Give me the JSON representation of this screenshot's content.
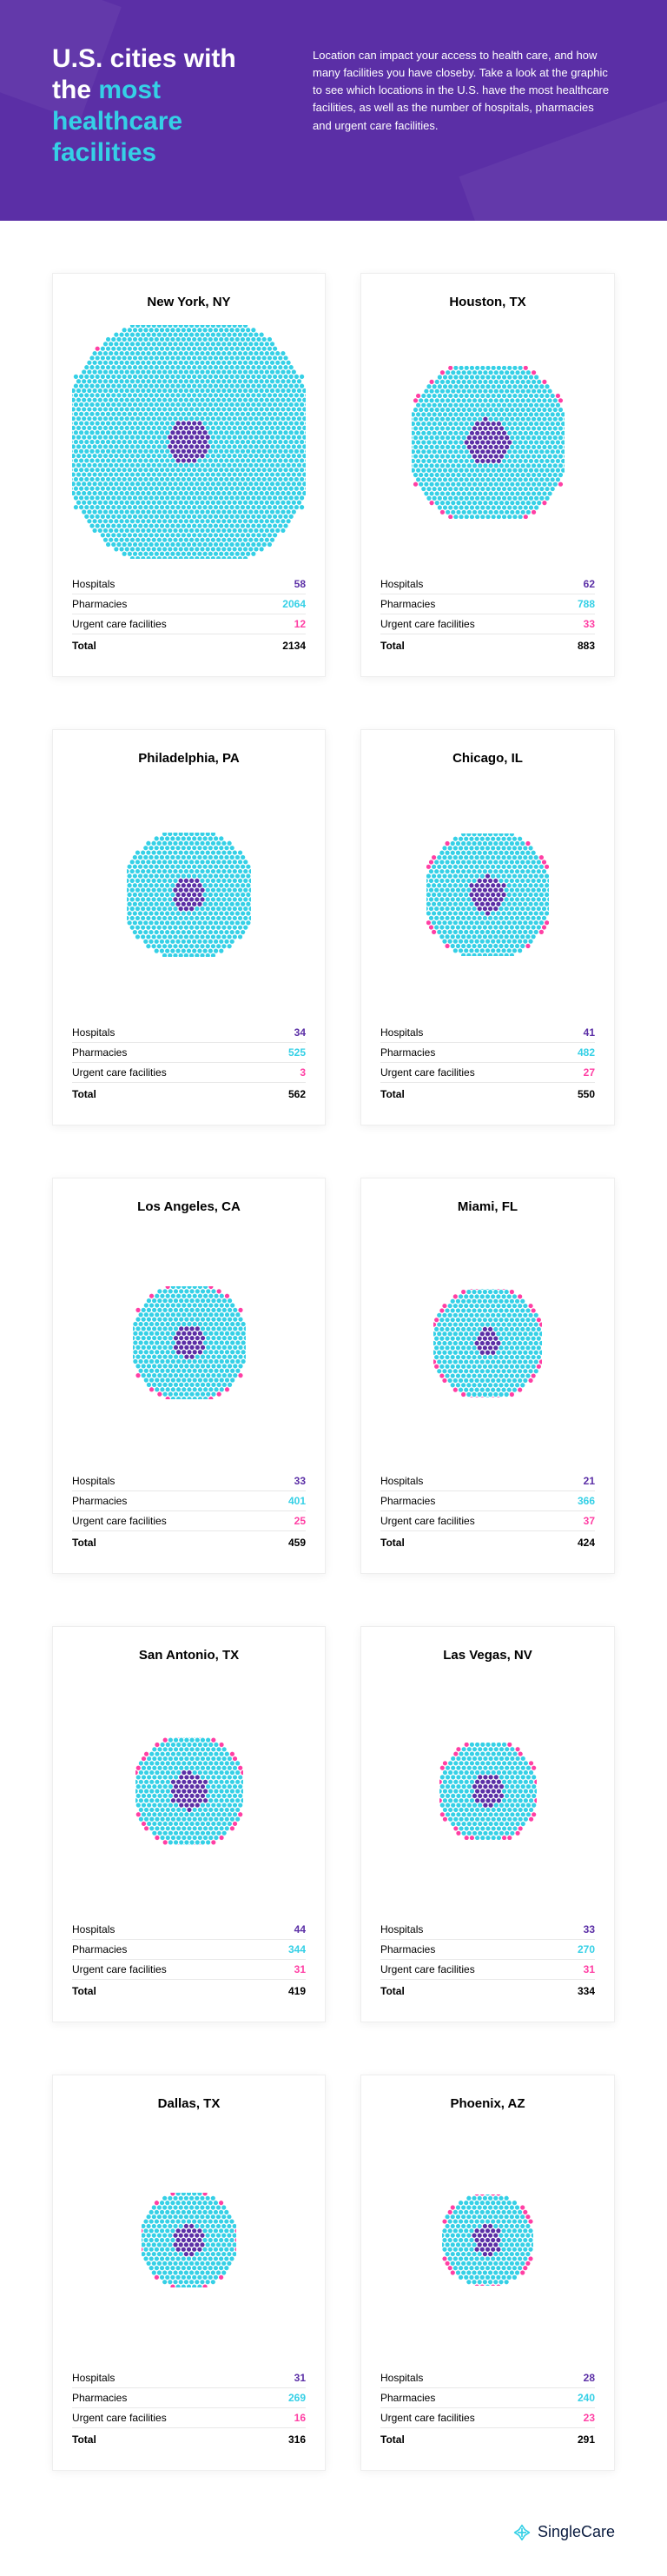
{
  "colors": {
    "header_bg": "#5b2fa6",
    "header_text": "#ffffff",
    "accent_cyan": "#35d0e6",
    "hospitals": "#5b2fa6",
    "pharmacies": "#35d0e6",
    "urgent": "#ff3fa4",
    "card_border": "#eeeeee",
    "divider": "#e8e8e8",
    "footer_mark": "#35d0e6",
    "footer_text": "#0a1b3f"
  },
  "header": {
    "title_pre": "U.S. cities with the ",
    "title_accent1": "most",
    "title_accent2": "healthcare facilities",
    "description": "Location can impact your access to health care, and how many facilities you have closeby. Take a look at the graphic to see which locations in the U.S. have the most healthcare facilities, as well as the number of hospitals, pharmacies and urgent care facilities."
  },
  "labels": {
    "hospitals": "Hospitals",
    "pharmacies": "Pharmacies",
    "urgent": "Urgent care facilities",
    "total": "Total"
  },
  "footer": {
    "brand": "SingleCare"
  },
  "viz": {
    "dot_radius": 2.6,
    "dot_spacing": 6.2
  },
  "cities": [
    {
      "name": "New York, NY",
      "hospitals": 58,
      "pharmacies": 2064,
      "urgent": 12,
      "total": 2134
    },
    {
      "name": "Houston, TX",
      "hospitals": 62,
      "pharmacies": 788,
      "urgent": 33,
      "total": 883
    },
    {
      "name": "Philadelphia, PA",
      "hospitals": 34,
      "pharmacies": 525,
      "urgent": 3,
      "total": 562
    },
    {
      "name": "Chicago, IL",
      "hospitals": 41,
      "pharmacies": 482,
      "urgent": 27,
      "total": 550
    },
    {
      "name": "Los Angeles, CA",
      "hospitals": 33,
      "pharmacies": 401,
      "urgent": 25,
      "total": 459
    },
    {
      "name": "Miami, FL",
      "hospitals": 21,
      "pharmacies": 366,
      "urgent": 37,
      "total": 424
    },
    {
      "name": "San Antonio, TX",
      "hospitals": 44,
      "pharmacies": 344,
      "urgent": 31,
      "total": 419
    },
    {
      "name": "Las Vegas, NV",
      "hospitals": 33,
      "pharmacies": 270,
      "urgent": 31,
      "total": 334
    },
    {
      "name": "Dallas, TX",
      "hospitals": 31,
      "pharmacies": 269,
      "urgent": 16,
      "total": 316
    },
    {
      "name": "Phoenix, AZ",
      "hospitals": 28,
      "pharmacies": 240,
      "urgent": 23,
      "total": 291
    }
  ]
}
